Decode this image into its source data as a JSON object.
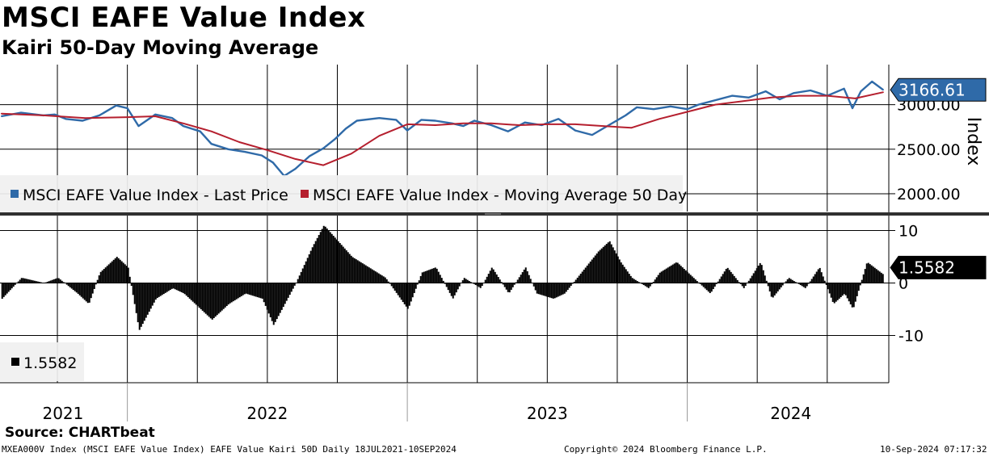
{
  "header": {
    "title": "MSCI EAFE Value Index",
    "subtitle": "Kairi 50-Day Moving Average"
  },
  "source": "Source: CHARTbeat",
  "footer": {
    "left": "MXEA000V Index (MSCI EAFE Value Index) EAFE Value Kairi 50D  Daily 18JUL2021-10SEP2024",
    "center": "Copyright© 2024 Bloomberg Finance L.P.",
    "right": "10-Sep-2024 07:17:32"
  },
  "colors": {
    "price": "#2f6aa8",
    "ma": "#b51f2e",
    "kairi": "#000000",
    "badge_price": "#2f6aa8",
    "badge_kairi": "#000000"
  },
  "chart_data": [
    {
      "type": "line",
      "title": "MSCI EAFE Value Index",
      "ylabel": "Index",
      "ylim": [
        1800,
        3450
      ],
      "yticks": [
        2000,
        2500,
        3000
      ],
      "ytick_labels": [
        "2000.00",
        "2500.00",
        "3000.00"
      ],
      "xlim": [
        2021.545,
        2024.72
      ],
      "last_value_label": "3166.61",
      "legend": [
        "MSCI EAFE Value Index - Last Price",
        "MSCI EAFE Value Index - Moving Average 50 Day"
      ],
      "series": [
        {
          "name": "MSCI EAFE Value Index - Last Price",
          "x": [
            2021.55,
            2021.62,
            2021.7,
            2021.74,
            2021.78,
            2021.84,
            2021.9,
            2021.96,
            2022.0,
            2022.04,
            2022.1,
            2022.16,
            2022.2,
            2022.26,
            2022.3,
            2022.36,
            2022.42,
            2022.48,
            2022.52,
            2022.56,
            2022.6,
            2022.65,
            2022.7,
            2022.74,
            2022.78,
            2022.82,
            2022.9,
            2022.96,
            2023.0,
            2023.05,
            2023.1,
            2023.16,
            2023.2,
            2023.24,
            2023.3,
            2023.36,
            2023.42,
            2023.48,
            2023.54,
            2023.6,
            2023.66,
            2023.72,
            2023.78,
            2023.82,
            2023.88,
            2023.94,
            2024.0,
            2024.04,
            2024.1,
            2024.16,
            2024.22,
            2024.28,
            2024.33,
            2024.38,
            2024.44,
            2024.5,
            2024.56,
            2024.59,
            2024.62,
            2024.66,
            2024.7
          ],
          "values": [
            2870,
            2910,
            2880,
            2890,
            2840,
            2820,
            2880,
            2990,
            2960,
            2760,
            2890,
            2850,
            2760,
            2700,
            2560,
            2500,
            2470,
            2430,
            2350,
            2200,
            2280,
            2420,
            2510,
            2610,
            2730,
            2820,
            2850,
            2830,
            2710,
            2830,
            2820,
            2790,
            2760,
            2820,
            2770,
            2700,
            2800,
            2770,
            2840,
            2710,
            2660,
            2770,
            2880,
            2970,
            2950,
            2980,
            2950,
            3000,
            3050,
            3100,
            3080,
            3150,
            3060,
            3130,
            3160,
            3100,
            3180,
            2960,
            3150,
            3260,
            3166.61
          ]
        },
        {
          "name": "MSCI EAFE Value Index - Moving Average 50 Day",
          "x": [
            2021.55,
            2021.7,
            2021.85,
            2022.0,
            2022.1,
            2022.2,
            2022.3,
            2022.4,
            2022.5,
            2022.6,
            2022.7,
            2022.8,
            2022.9,
            2023.0,
            2023.1,
            2023.2,
            2023.3,
            2023.4,
            2023.5,
            2023.6,
            2023.7,
            2023.8,
            2023.9,
            2024.0,
            2024.1,
            2024.2,
            2024.3,
            2024.4,
            2024.5,
            2024.6,
            2024.7
          ],
          "values": [
            2900,
            2880,
            2850,
            2860,
            2870,
            2790,
            2700,
            2580,
            2490,
            2390,
            2320,
            2450,
            2650,
            2780,
            2770,
            2790,
            2790,
            2770,
            2780,
            2780,
            2760,
            2740,
            2840,
            2920,
            3000,
            3040,
            3080,
            3100,
            3100,
            3070,
            3140
          ]
        }
      ]
    },
    {
      "type": "bar",
      "title": "Kairi 50-Day Moving Average",
      "ylim": [
        -19,
        13
      ],
      "yticks": [
        -10,
        0,
        10
      ],
      "ytick_labels": [
        "-10",
        "0",
        "10"
      ],
      "xlim": [
        2021.545,
        2024.72
      ],
      "last_value_label": "1.5582",
      "legend_value": "1.5582",
      "x": [
        2021.55,
        2021.62,
        2021.7,
        2021.75,
        2021.82,
        2021.86,
        2021.9,
        2021.96,
        2022.0,
        2022.04,
        2022.1,
        2022.16,
        2022.2,
        2022.26,
        2022.3,
        2022.36,
        2022.42,
        2022.48,
        2022.52,
        2022.56,
        2022.6,
        2022.66,
        2022.7,
        2022.75,
        2022.8,
        2022.86,
        2022.92,
        2023.0,
        2023.05,
        2023.1,
        2023.16,
        2023.2,
        2023.26,
        2023.3,
        2023.36,
        2023.42,
        2023.46,
        2023.52,
        2023.56,
        2023.62,
        2023.68,
        2023.72,
        2023.76,
        2023.8,
        2023.86,
        2023.9,
        2023.96,
        2024.02,
        2024.08,
        2024.14,
        2024.2,
        2024.26,
        2024.3,
        2024.36,
        2024.42,
        2024.47,
        2024.52,
        2024.56,
        2024.59,
        2024.64,
        2024.7
      ],
      "values": [
        -3,
        1,
        0,
        1,
        -2,
        -4,
        2,
        5,
        3,
        -9,
        -3,
        -1,
        -2,
        -5,
        -7,
        -4,
        -2,
        -3,
        -8,
        -4,
        0,
        7,
        11,
        8,
        5,
        3,
        1,
        -5,
        2,
        3,
        -3,
        1,
        -1,
        3,
        -2,
        3,
        -2,
        -3,
        -2,
        2,
        6,
        8,
        4,
        1,
        -1,
        2,
        4,
        1,
        -2,
        3,
        -1,
        4,
        -3,
        1,
        -1,
        3,
        -4,
        -2,
        -5,
        4,
        1.5582
      ]
    }
  ],
  "x_axis": {
    "labels": [
      "2021",
      "2022",
      "2023",
      "2024"
    ]
  }
}
